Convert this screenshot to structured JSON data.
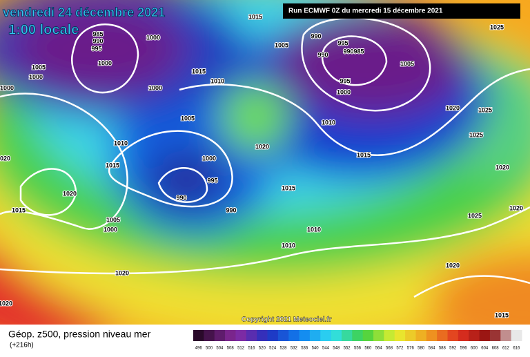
{
  "header": {
    "date": "vendredi 24 décembre 2021",
    "time": "1:00 locale",
    "run": "Run ECMWF 0Z du mercredi 15 décembre 2021"
  },
  "map": {
    "copyright": "Copyright 2021 Meteociel.fr",
    "isobar_labels": [
      "1015",
      "985",
      "990",
      "995",
      "1000",
      "1005",
      "1000",
      "1000",
      "1000",
      "1000",
      "990",
      "995",
      "990",
      "990",
      "985",
      "1005",
      "1005",
      "1015",
      "1010",
      "995",
      "1000",
      "1020",
      "1025",
      "1025",
      "1005",
      "1010",
      "1015",
      "1000",
      "995",
      "990",
      "990",
      "1010",
      "1015",
      "1020",
      "1015",
      "1025",
      "1020",
      "1020",
      "1025",
      "1020",
      "1015",
      "1005",
      "1000",
      "1010",
      "1010",
      "1020",
      "1020",
      "1015",
      "1020",
      "1020"
    ]
  },
  "footer": {
    "title": "Géop. z500, pression niveau mer",
    "lead": "(+216h)",
    "scale": [
      "496",
      "500",
      "504",
      "508",
      "512",
      "516",
      "520",
      "524",
      "528",
      "532",
      "536",
      "540",
      "544",
      "548",
      "552",
      "556",
      "560",
      "564",
      "568",
      "572",
      "576",
      "580",
      "584",
      "588",
      "592",
      "596",
      "600",
      "604",
      "608",
      "612",
      "616"
    ]
  }
}
